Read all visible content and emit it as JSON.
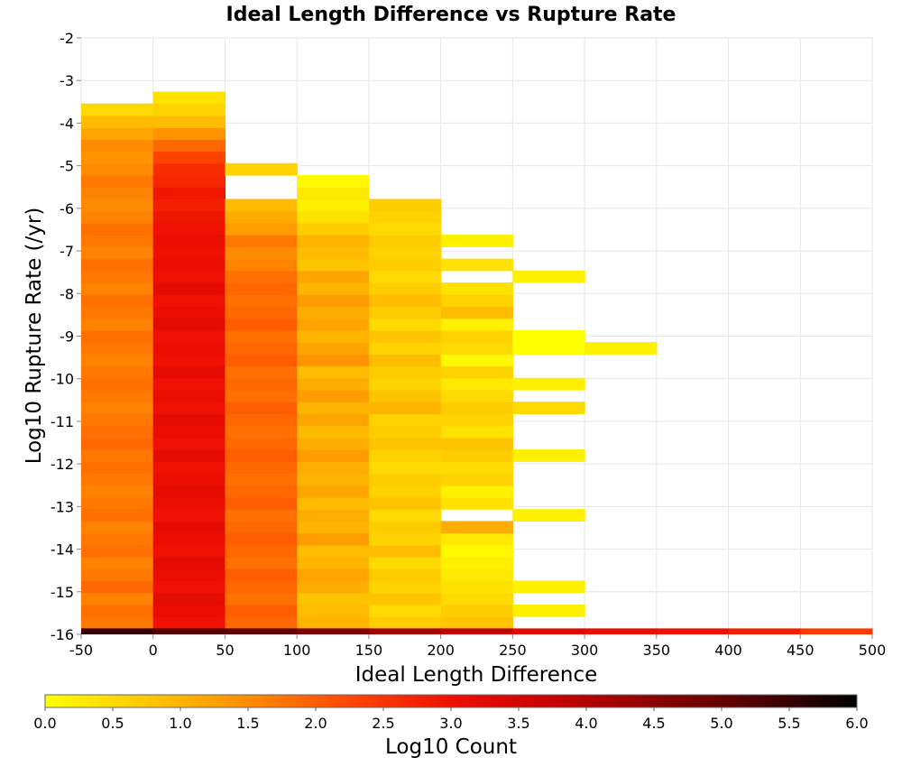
{
  "chart_data": {
    "type": "heatmap",
    "title": "Ideal Length Difference vs Rupture Rate",
    "xlabel": "Ideal Length Difference",
    "ylabel": "Log10 Rupture Rate (/yr)",
    "xlim": [
      -50,
      500
    ],
    "ylim": [
      -16,
      -2
    ],
    "x_ticks": [
      "-50",
      "0",
      "50",
      "100",
      "150",
      "200",
      "250",
      "300",
      "350",
      "400",
      "450",
      "500"
    ],
    "y_ticks": [
      "-2",
      "-3",
      "-4",
      "-5",
      "-6",
      "-7",
      "-8",
      "-9",
      "-10",
      "-11",
      "-12",
      "-13",
      "-14",
      "-15",
      "-16"
    ],
    "x_bin_width": 50,
    "y_bin_height": 0.28,
    "grid": true,
    "colorscale": {
      "label": "Log10 Count",
      "min": 0.0,
      "max": 6.0,
      "ticks": [
        "0.0",
        "0.5",
        "1.0",
        "1.5",
        "2.0",
        "2.5",
        "3.0",
        "3.5",
        "4.0",
        "4.5",
        "5.0",
        "5.5",
        "6.0"
      ],
      "colors": [
        "#ffff00",
        "#ffc800",
        "#ff8c00",
        "#ff4600",
        "#ee1000",
        "#c80000",
        "#8c0000",
        "#500000",
        "#000000"
      ]
    },
    "columns": [
      {
        "x_start": -50,
        "y_start": -15.86,
        "values": [
          1.7,
          1.8,
          1.6,
          1.9,
          1.7,
          1.6,
          1.8,
          1.7,
          1.6,
          1.8,
          1.7,
          1.6,
          1.7,
          1.8,
          1.7,
          1.9,
          1.8,
          1.7,
          1.6,
          1.7,
          1.8,
          1.7,
          1.6,
          1.7,
          1.8,
          1.6,
          1.7,
          1.8,
          1.6,
          1.7,
          1.8,
          1.6,
          1.7,
          1.8,
          1.6,
          1.5,
          1.6,
          1.7,
          1.5,
          1.4,
          1.5,
          1.2,
          0.9,
          0.5
        ]
      },
      {
        "x_start": 0,
        "y_start": -15.86,
        "values": [
          3.0,
          3.1,
          3.2,
          3.0,
          3.1,
          3.2,
          3.0,
          3.1,
          3.2,
          3.0,
          3.1,
          3.2,
          3.1,
          3.0,
          3.2,
          3.0,
          3.1,
          3.2,
          3.0,
          3.1,
          3.0,
          3.2,
          3.0,
          3.1,
          3.0,
          3.2,
          3.1,
          3.0,
          3.2,
          3.0,
          3.1,
          3.0,
          3.1,
          3.0,
          2.9,
          2.8,
          2.9,
          2.7,
          2.6,
          2.3,
          1.9,
          1.4,
          0.9,
          0.6,
          0.4
        ]
      },
      {
        "x_start": 50,
        "y_start": -15.86,
        "values": [
          1.9,
          2.0,
          1.8,
          1.9,
          2.0,
          1.8,
          1.9,
          2.0,
          1.9,
          1.8,
          2.0,
          1.9,
          1.8,
          1.9,
          2.0,
          1.9,
          1.8,
          1.9,
          2.0,
          1.8,
          1.9,
          1.8,
          2.0,
          1.9,
          1.8,
          2.0,
          1.9,
          1.8,
          1.9,
          1.8,
          1.6,
          1.5,
          1.7,
          1.3,
          1.1,
          0.9,
          null,
          null,
          0.6
        ]
      },
      {
        "x_start": 100,
        "y_start": -15.86,
        "values": [
          1.0,
          0.9,
          0.8,
          1.1,
          1.2,
          1.0,
          0.9,
          1.3,
          1.0,
          1.1,
          0.9,
          1.2,
          1.0,
          1.1,
          1.3,
          1.1,
          0.9,
          1.2,
          1.0,
          1.3,
          1.1,
          0.9,
          1.4,
          1.2,
          1.0,
          1.2,
          1.1,
          1.3,
          1.0,
          1.2,
          0.8,
          0.9,
          1.0,
          0.7,
          0.4,
          0.2,
          0.3,
          0.1
        ]
      },
      {
        "x_start": 150,
        "y_start": -15.86,
        "values": [
          0.7,
          0.5,
          0.8,
          0.6,
          0.7,
          0.5,
          0.9,
          0.6,
          0.7,
          0.5,
          0.8,
          0.6,
          0.7,
          0.5,
          0.6,
          0.8,
          0.7,
          0.6,
          1.0,
          0.8,
          0.6,
          0.7,
          0.9,
          0.6,
          0.8,
          0.5,
          0.7,
          0.9,
          0.7,
          0.5,
          0.7,
          0.6,
          0.7,
          0.5,
          0.6,
          0.7
        ]
      },
      {
        "x_start": 200,
        "y_start": -15.86,
        "values": [
          0.8,
          0.7,
          0.5,
          0.4,
          0.3,
          0.2,
          0.1,
          0.3,
          1.1,
          null,
          0.4,
          0.2,
          0.6,
          0.5,
          0.7,
          0.8,
          0.4,
          0.6,
          0.7,
          0.5,
          0.3,
          0.6,
          0.1,
          0.5,
          0.6,
          0.2,
          0.9,
          0.6,
          0.4,
          null,
          0.4,
          null,
          0.2
        ]
      },
      {
        "x_start": 250,
        "y_start": -15.86,
        "values": [
          null,
          0.2,
          null,
          0.2,
          null,
          null,
          null,
          null,
          null,
          0.2,
          null,
          null,
          null,
          null,
          0.2,
          null,
          null,
          null,
          0.5,
          null,
          0.2,
          null,
          null,
          0.0,
          0.0,
          null,
          null,
          null,
          null,
          0.2
        ]
      },
      {
        "x_start": 300,
        "y_start": -15.86,
        "values": [
          null,
          null,
          null,
          null,
          null,
          null,
          null,
          null,
          null,
          null,
          null,
          null,
          null,
          null,
          null,
          null,
          null,
          null,
          null,
          null,
          null,
          null,
          null,
          0.2
        ]
      }
    ],
    "bottom_row": {
      "y_start": -16.0,
      "y_end": -15.86,
      "values": [
        5.5,
        5.2,
        5.0,
        4.6,
        4.2,
        3.9,
        3.3,
        3.1,
        3.0,
        2.8,
        2.4
      ]
    }
  }
}
